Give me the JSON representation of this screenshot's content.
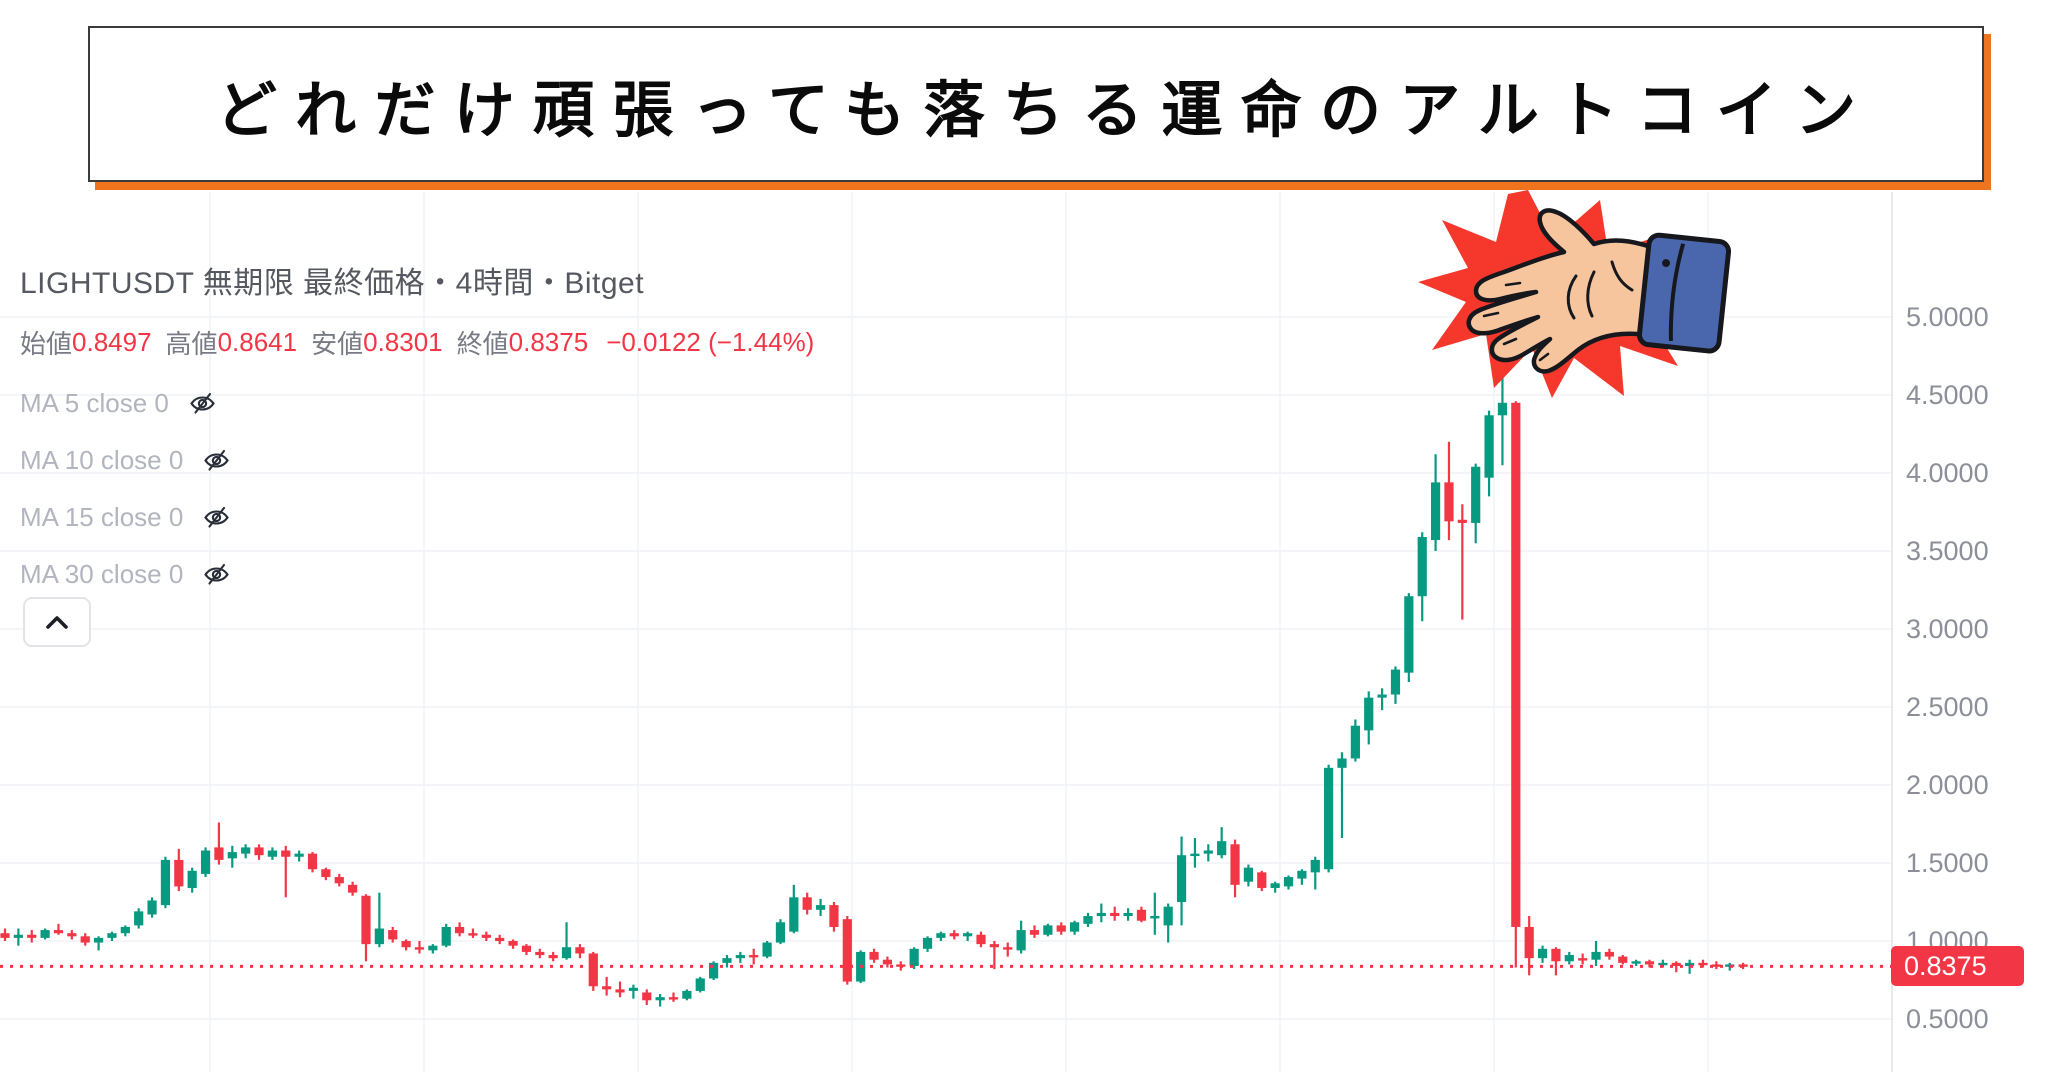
{
  "banner": {
    "text": "どれだけ頑張っても落ちる運命のアルトコイン",
    "border_color": "#3b3b3b",
    "shadow_color": "#F0741D"
  },
  "header": {
    "symbol_line": "LIGHTUSDT 無期限 最終価格・4時間・Bitget"
  },
  "ohlc": {
    "open_label": "始値",
    "open": "0.8497",
    "high_label": "高値",
    "high": "0.8641",
    "low_label": "安値",
    "low": "0.8301",
    "close_label": "終値",
    "close": "0.8375",
    "change": "−0.0122 (−1.44%)"
  },
  "legend": {
    "rows": [
      {
        "label": "MA 5 close 0"
      },
      {
        "label": "MA 10 close 0"
      },
      {
        "label": "MA 15 close 0"
      },
      {
        "label": "MA 30 close 0"
      }
    ],
    "icon": "eye-off-icon"
  },
  "collapse_button": {
    "icon": "chevron-up-icon"
  },
  "price_axis": {
    "ticks": [
      "5.0000",
      "4.5000",
      "4.0000",
      "3.5000",
      "3.0000",
      "2.5000",
      "2.0000",
      "1.5000",
      "1.0000",
      "0.5000"
    ],
    "tick_values": [
      5.0,
      4.5,
      4.0,
      3.5,
      3.0,
      2.5,
      2.0,
      1.5,
      1.0,
      0.5
    ],
    "last_price_label": "0.8375",
    "last_price_value": 0.8375
  },
  "illustration": {
    "name": "slap-hand",
    "starburst_color": "#F5382B",
    "skin_color": "#F6C59E",
    "sleeve_color": "#4A67AE",
    "outline_color": "#16181d"
  },
  "chart_data": {
    "type": "candlestick",
    "symbol": "LIGHTUSDT",
    "contract": "無期限",
    "price_source": "最終価格",
    "interval": "4時間",
    "exchange": "Bitget",
    "current_bar": {
      "open": 0.8497,
      "high": 0.8641,
      "low": 0.8301,
      "close": 0.8375,
      "change": -0.0122,
      "change_pct": -1.44
    },
    "price_line_value": 0.8375,
    "up_color": "#089981",
    "down_color": "#F23645",
    "grid_color": "#F0F2F6",
    "price_line_color": "#F23645",
    "grid": true,
    "ylim": [
      0.35,
      5.25
    ],
    "y_ticks": [
      5.0,
      4.5,
      4.0,
      3.5,
      3.0,
      2.5,
      2.0,
      1.5,
      1.0,
      0.5
    ],
    "x_axis_labels_visible": false,
    "candles_ohlc": [
      [
        1.05,
        1.08,
        1.0,
        1.02
      ],
      [
        1.02,
        1.08,
        0.97,
        1.04
      ],
      [
        1.04,
        1.07,
        0.99,
        1.02
      ],
      [
        1.02,
        1.08,
        1.01,
        1.07
      ],
      [
        1.07,
        1.11,
        1.04,
        1.05
      ],
      [
        1.05,
        1.07,
        1.01,
        1.03
      ],
      [
        1.03,
        1.05,
        0.97,
        0.99
      ],
      [
        0.99,
        1.03,
        0.94,
        1.02
      ],
      [
        1.02,
        1.06,
        1.0,
        1.05
      ],
      [
        1.05,
        1.1,
        1.03,
        1.09
      ],
      [
        1.1,
        1.21,
        1.08,
        1.19
      ],
      [
        1.17,
        1.28,
        1.15,
        1.26
      ],
      [
        1.23,
        1.54,
        1.21,
        1.52
      ],
      [
        1.52,
        1.59,
        1.32,
        1.35
      ],
      [
        1.34,
        1.47,
        1.31,
        1.45
      ],
      [
        1.43,
        1.6,
        1.41,
        1.58
      ],
      [
        1.6,
        1.76,
        1.49,
        1.52
      ],
      [
        1.53,
        1.61,
        1.47,
        1.57
      ],
      [
        1.56,
        1.62,
        1.53,
        1.6
      ],
      [
        1.6,
        1.62,
        1.52,
        1.55
      ],
      [
        1.54,
        1.6,
        1.52,
        1.58
      ],
      [
        1.58,
        1.61,
        1.28,
        1.54
      ],
      [
        1.54,
        1.58,
        1.51,
        1.56
      ],
      [
        1.56,
        1.57,
        1.44,
        1.46
      ],
      [
        1.46,
        1.47,
        1.39,
        1.41
      ],
      [
        1.41,
        1.43,
        1.35,
        1.37
      ],
      [
        1.36,
        1.38,
        1.29,
        1.31
      ],
      [
        1.29,
        1.3,
        0.87,
        0.98
      ],
      [
        0.98,
        1.31,
        0.96,
        1.08
      ],
      [
        1.07,
        1.09,
        0.99,
        1.01
      ],
      [
        1.0,
        1.01,
        0.94,
        0.96
      ],
      [
        0.96,
        1.0,
        0.92,
        0.95
      ],
      [
        0.94,
        0.98,
        0.92,
        0.97
      ],
      [
        0.97,
        1.11,
        0.96,
        1.09
      ],
      [
        1.09,
        1.12,
        1.03,
        1.05
      ],
      [
        1.05,
        1.08,
        1.02,
        1.04
      ],
      [
        1.04,
        1.06,
        1.0,
        1.02
      ],
      [
        1.02,
        1.04,
        0.98,
        1.0
      ],
      [
        1.0,
        1.01,
        0.95,
        0.97
      ],
      [
        0.97,
        0.98,
        0.91,
        0.93
      ],
      [
        0.93,
        0.95,
        0.89,
        0.91
      ],
      [
        0.91,
        0.93,
        0.87,
        0.89
      ],
      [
        0.89,
        1.12,
        0.88,
        0.96
      ],
      [
        0.96,
        0.98,
        0.89,
        0.92
      ],
      [
        0.92,
        0.93,
        0.68,
        0.71
      ],
      [
        0.71,
        0.77,
        0.65,
        0.69
      ],
      [
        0.69,
        0.74,
        0.64,
        0.67
      ],
      [
        0.68,
        0.72,
        0.63,
        0.7
      ],
      [
        0.67,
        0.69,
        0.59,
        0.62
      ],
      [
        0.62,
        0.66,
        0.58,
        0.64
      ],
      [
        0.64,
        0.67,
        0.61,
        0.63
      ],
      [
        0.63,
        0.69,
        0.62,
        0.68
      ],
      [
        0.68,
        0.77,
        0.67,
        0.76
      ],
      [
        0.76,
        0.87,
        0.75,
        0.86
      ],
      [
        0.86,
        0.91,
        0.83,
        0.89
      ],
      [
        0.89,
        0.93,
        0.86,
        0.91
      ],
      [
        0.91,
        0.95,
        0.85,
        0.9
      ],
      [
        0.9,
        1.0,
        0.89,
        0.99
      ],
      [
        0.99,
        1.14,
        0.98,
        1.12
      ],
      [
        1.06,
        1.36,
        1.05,
        1.28
      ],
      [
        1.28,
        1.31,
        1.17,
        1.2
      ],
      [
        1.2,
        1.27,
        1.16,
        1.23
      ],
      [
        1.23,
        1.25,
        1.06,
        1.09
      ],
      [
        1.14,
        1.16,
        0.72,
        0.74
      ],
      [
        0.74,
        0.94,
        0.73,
        0.93
      ],
      [
        0.93,
        0.95,
        0.86,
        0.88
      ],
      [
        0.88,
        0.9,
        0.83,
        0.85
      ],
      [
        0.85,
        0.87,
        0.81,
        0.84
      ],
      [
        0.84,
        0.96,
        0.82,
        0.95
      ],
      [
        0.95,
        1.03,
        0.93,
        1.02
      ],
      [
        1.02,
        1.06,
        1.0,
        1.05
      ],
      [
        1.05,
        1.07,
        1.01,
        1.03
      ],
      [
        1.03,
        1.06,
        1.0,
        1.05
      ],
      [
        1.04,
        1.06,
        0.96,
        0.98
      ],
      [
        0.98,
        1.0,
        0.82,
        0.96
      ],
      [
        0.96,
        0.99,
        0.9,
        0.95
      ],
      [
        0.94,
        1.13,
        0.92,
        1.07
      ],
      [
        1.07,
        1.1,
        1.02,
        1.04
      ],
      [
        1.04,
        1.11,
        1.03,
        1.1
      ],
      [
        1.1,
        1.12,
        1.04,
        1.06
      ],
      [
        1.06,
        1.13,
        1.04,
        1.12
      ],
      [
        1.11,
        1.18,
        1.09,
        1.16
      ],
      [
        1.16,
        1.24,
        1.12,
        1.18
      ],
      [
        1.18,
        1.22,
        1.13,
        1.16
      ],
      [
        1.16,
        1.21,
        1.13,
        1.18
      ],
      [
        1.2,
        1.22,
        1.12,
        1.13
      ],
      [
        1.15,
        1.31,
        1.04,
        1.16
      ],
      [
        1.1,
        1.24,
        0.99,
        1.22
      ],
      [
        1.25,
        1.67,
        1.1,
        1.55
      ],
      [
        1.55,
        1.66,
        1.47,
        1.56
      ],
      [
        1.56,
        1.62,
        1.51,
        1.58
      ],
      [
        1.55,
        1.73,
        1.53,
        1.64
      ],
      [
        1.62,
        1.65,
        1.28,
        1.36
      ],
      [
        1.38,
        1.49,
        1.35,
        1.47
      ],
      [
        1.44,
        1.45,
        1.32,
        1.34
      ],
      [
        1.34,
        1.38,
        1.31,
        1.37
      ],
      [
        1.35,
        1.42,
        1.33,
        1.41
      ],
      [
        1.4,
        1.46,
        1.36,
        1.45
      ],
      [
        1.44,
        1.54,
        1.33,
        1.52
      ],
      [
        1.46,
        2.13,
        1.44,
        2.11
      ],
      [
        2.11,
        2.21,
        1.66,
        2.17
      ],
      [
        2.17,
        2.42,
        2.15,
        2.38
      ],
      [
        2.35,
        2.6,
        2.26,
        2.56
      ],
      [
        2.56,
        2.62,
        2.48,
        2.58
      ],
      [
        2.58,
        2.76,
        2.52,
        2.74
      ],
      [
        2.72,
        3.23,
        2.66,
        3.21
      ],
      [
        3.21,
        3.62,
        3.05,
        3.59
      ],
      [
        3.57,
        4.12,
        3.5,
        3.94
      ],
      [
        3.94,
        4.2,
        3.57,
        3.69
      ],
      [
        3.7,
        3.8,
        3.06,
        3.68
      ],
      [
        3.68,
        4.06,
        3.55,
        4.04
      ],
      [
        3.97,
        4.4,
        3.85,
        4.37
      ],
      [
        4.37,
        4.69,
        4.05,
        4.45
      ],
      [
        4.45,
        4.46,
        0.83,
        1.09
      ],
      [
        1.09,
        1.16,
        0.78,
        0.89
      ],
      [
        0.89,
        0.97,
        0.86,
        0.95
      ],
      [
        0.95,
        0.96,
        0.78,
        0.87
      ],
      [
        0.87,
        0.93,
        0.85,
        0.91
      ],
      [
        0.89,
        0.92,
        0.85,
        0.88
      ],
      [
        0.88,
        1.0,
        0.84,
        0.93
      ],
      [
        0.93,
        0.95,
        0.88,
        0.9
      ],
      [
        0.9,
        0.91,
        0.85,
        0.86
      ],
      [
        0.86,
        0.88,
        0.84,
        0.87
      ],
      [
        0.87,
        0.88,
        0.83,
        0.85
      ],
      [
        0.85,
        0.88,
        0.83,
        0.86
      ],
      [
        0.86,
        0.87,
        0.8,
        0.84
      ],
      [
        0.84,
        0.88,
        0.79,
        0.86
      ],
      [
        0.86,
        0.88,
        0.83,
        0.85
      ],
      [
        0.85,
        0.87,
        0.82,
        0.84
      ],
      [
        0.84,
        0.86,
        0.81,
        0.85
      ],
      [
        0.85,
        0.86,
        0.82,
        0.84
      ]
    ]
  }
}
